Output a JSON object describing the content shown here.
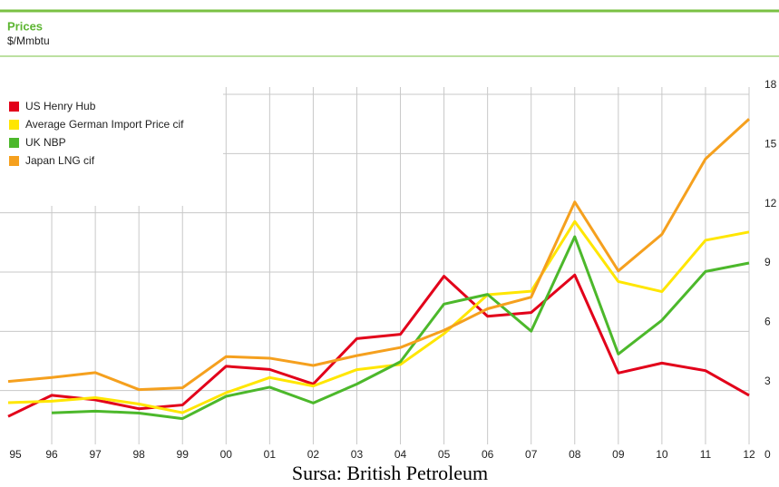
{
  "chart_data": {
    "type": "line",
    "title": "Prices",
    "subtitle": "$/Mmbtu",
    "source": "Sursa: British Petroleum",
    "categories": [
      "95",
      "96",
      "97",
      "98",
      "99",
      "00",
      "01",
      "02",
      "03",
      "04",
      "05",
      "06",
      "07",
      "08",
      "09",
      "10",
      "11",
      "12"
    ],
    "series": [
      {
        "name": "US Henry Hub",
        "color": "#e2001a",
        "values": [
          1.69,
          2.76,
          2.53,
          2.08,
          2.27,
          4.23,
          4.07,
          3.33,
          5.63,
          5.85,
          8.79,
          6.76,
          6.95,
          8.85,
          3.89,
          4.39,
          4.01,
          2.76
        ]
      },
      {
        "name": "Average German Import Price cif",
        "color": "#ffe600",
        "values": [
          2.39,
          2.46,
          2.64,
          2.32,
          1.88,
          2.89,
          3.66,
          3.23,
          4.06,
          4.32,
          5.88,
          7.85,
          8.03,
          11.56,
          8.52,
          8.01,
          10.61,
          11.03
        ]
      },
      {
        "name": "UK NBP",
        "color": "#4cb82b",
        "values": [
          null,
          1.87,
          1.96,
          1.86,
          1.58,
          2.71,
          3.17,
          2.37,
          3.33,
          4.46,
          7.38,
          7.87,
          6.01,
          10.79,
          4.85,
          6.56,
          9.03,
          9.46
        ]
      },
      {
        "name": "Japan LNG cif",
        "color": "#f5a01e",
        "values": [
          3.46,
          3.66,
          3.91,
          3.05,
          3.14,
          4.72,
          4.64,
          4.27,
          4.77,
          5.18,
          6.05,
          7.14,
          7.73,
          12.55,
          9.06,
          10.91,
          14.73,
          16.75
        ]
      }
    ],
    "ylim": [
      0,
      18
    ],
    "yticks": [
      0,
      3,
      6,
      9,
      12,
      15,
      18
    ],
    "grid": true,
    "legend": "top-left"
  }
}
